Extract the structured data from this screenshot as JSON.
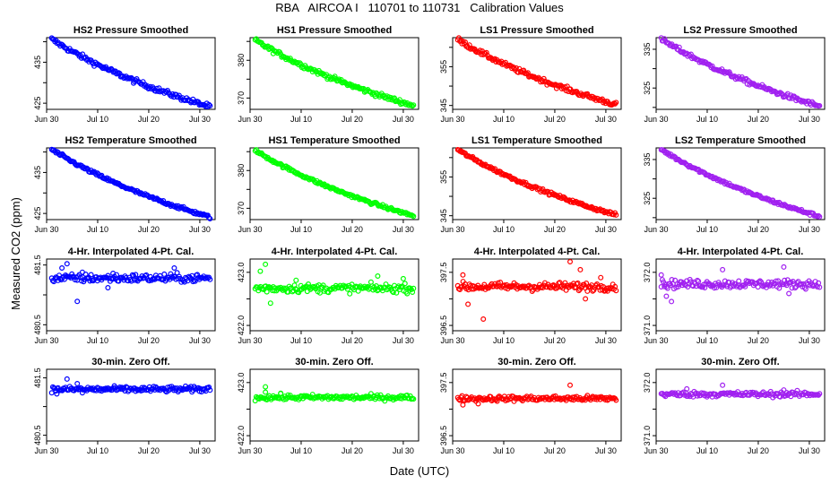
{
  "title": "RBA   AIRCOA I   110701 to 110731   Calibration Values",
  "ylabel": "Measured CO2 (ppm)",
  "xlabel": "Date (UTC)",
  "x_ticks": [
    "Jun 30",
    "Jul 10",
    "Jul 20",
    "Jul 30"
  ],
  "columns": [
    {
      "name": "HS2",
      "color": "#0000ff"
    },
    {
      "name": "HS1",
      "color": "#00ff00"
    },
    {
      "name": "LS1",
      "color": "#ff0000"
    },
    {
      "name": "LS2",
      "color": "#a020f0"
    }
  ],
  "chart_data": [
    {
      "type": "scatter",
      "title": "HS2 Pressure Smoothed",
      "color": "#0000ff",
      "xlim": [
        "2011-06-30",
        "2011-08-02"
      ],
      "ylim": [
        423.5,
        441.0
      ],
      "y_ticks": [
        "425",
        "435"
      ],
      "shape": "drift",
      "x_start": "2011-07-01",
      "x_end": "2011-08-01",
      "y_start": 440.6,
      "y_end": 424.1,
      "noise": 0.3,
      "outliers": []
    },
    {
      "type": "scatter",
      "title": "HS1 Pressure Smoothed",
      "color": "#00ff00",
      "xlim": [
        "2011-06-30",
        "2011-08-02"
      ],
      "ylim": [
        367.0,
        386.0
      ],
      "y_ticks": [
        "370",
        "380"
      ],
      "shape": "drift",
      "x_start": "2011-07-01",
      "x_end": "2011-08-01",
      "y_start": 385.3,
      "y_end": 368.0,
      "noise": 0.3,
      "outliers": []
    },
    {
      "type": "scatter",
      "title": "LS1 Pressure Smoothed",
      "color": "#ff0000",
      "xlim": [
        "2011-06-30",
        "2011-08-02"
      ],
      "ylim": [
        344.0,
        362.5
      ],
      "y_ticks": [
        "345",
        "355"
      ],
      "shape": "drift",
      "x_start": "2011-07-01",
      "x_end": "2011-08-01",
      "y_start": 362.0,
      "y_end": 345.2,
      "noise": 0.3,
      "outliers": []
    },
    {
      "type": "scatter",
      "title": "LS2 Pressure Smoothed",
      "color": "#a020f0",
      "xlim": [
        "2011-06-30",
        "2011-08-02"
      ],
      "ylim": [
        319.5,
        338.0
      ],
      "y_ticks": [
        "325",
        "335"
      ],
      "shape": "drift",
      "x_start": "2011-07-01",
      "x_end": "2011-08-01",
      "y_start": 337.6,
      "y_end": 320.3,
      "noise": 0.3,
      "outliers": []
    },
    {
      "type": "scatter",
      "title": "HS2 Temperature Smoothed",
      "color": "#0000ff",
      "xlim": [
        "2011-06-30",
        "2011-08-02"
      ],
      "ylim": [
        423.5,
        441.0
      ],
      "y_ticks": [
        "425",
        "435"
      ],
      "shape": "drift",
      "x_start": "2011-07-01",
      "x_end": "2011-08-01",
      "y_start": 440.6,
      "y_end": 424.1,
      "noise": 0.2,
      "outliers": []
    },
    {
      "type": "scatter",
      "title": "HS1 Temperature Smoothed",
      "color": "#00ff00",
      "xlim": [
        "2011-06-30",
        "2011-08-02"
      ],
      "ylim": [
        367.0,
        386.0
      ],
      "y_ticks": [
        "370",
        "380"
      ],
      "shape": "drift",
      "x_start": "2011-07-01",
      "x_end": "2011-08-01",
      "y_start": 385.3,
      "y_end": 368.0,
      "noise": 0.2,
      "outliers": []
    },
    {
      "type": "scatter",
      "title": "LS1 Temperature Smoothed",
      "color": "#ff0000",
      "xlim": [
        "2011-06-30",
        "2011-08-02"
      ],
      "ylim": [
        344.0,
        362.5
      ],
      "y_ticks": [
        "345",
        "355"
      ],
      "shape": "drift",
      "x_start": "2011-07-01",
      "x_end": "2011-08-01",
      "y_start": 362.0,
      "y_end": 345.2,
      "noise": 0.2,
      "outliers": []
    },
    {
      "type": "scatter",
      "title": "LS2 Temperature Smoothed",
      "color": "#a020f0",
      "xlim": [
        "2011-06-30",
        "2011-08-02"
      ],
      "ylim": [
        319.5,
        338.0
      ],
      "y_ticks": [
        "325",
        "335"
      ],
      "shape": "drift",
      "x_start": "2011-07-01",
      "x_end": "2011-08-01",
      "y_start": 337.6,
      "y_end": 320.3,
      "noise": 0.2,
      "outliers": []
    },
    {
      "type": "scatter",
      "title": "4-Hr. Interpolated 4-Pt. Cal.",
      "color": "#0000ff",
      "xlim": [
        "2011-06-30",
        "2011-08-02"
      ],
      "ylim": [
        480.4,
        481.6
      ],
      "y_ticks": [
        "480.5",
        "481.5"
      ],
      "shape": "flat",
      "x_start": "2011-07-01",
      "x_end": "2011-08-01",
      "y_start": 481.28,
      "y_end": 481.28,
      "noise": 0.035,
      "outliers": [
        [
          "2011-07-04",
          481.52
        ],
        [
          "2011-07-03",
          481.45
        ],
        [
          "2011-07-06",
          480.89
        ],
        [
          "2011-07-07",
          481.38
        ],
        [
          "2011-07-12",
          481.12
        ],
        [
          "2011-07-25",
          481.45
        ],
        [
          "2011-07-13",
          481.36
        ]
      ]
    },
    {
      "type": "scatter",
      "title": "4-Hr. Interpolated 4-Pt. Cal.",
      "color": "#00ff00",
      "xlim": [
        "2011-06-30",
        "2011-08-02"
      ],
      "ylim": [
        421.9,
        423.25
      ],
      "y_ticks": [
        "422.0",
        "423.0"
      ],
      "shape": "flat",
      "x_start": "2011-07-01",
      "x_end": "2011-08-01",
      "y_start": 422.7,
      "y_end": 422.7,
      "noise": 0.04,
      "outliers": [
        [
          "2011-07-03",
          423.15
        ],
        [
          "2011-07-04",
          422.42
        ],
        [
          "2011-07-02",
          423.02
        ],
        [
          "2011-07-09",
          422.85
        ],
        [
          "2011-07-25",
          422.93
        ],
        [
          "2011-07-30",
          422.88
        ]
      ]
    },
    {
      "type": "scatter",
      "title": "4-Hr. Interpolated 4-Pt. Cal.",
      "color": "#ff0000",
      "xlim": [
        "2011-06-30",
        "2011-08-02"
      ],
      "ylim": [
        396.4,
        397.75
      ],
      "y_ticks": [
        "396.5",
        "397.5"
      ],
      "shape": "flat",
      "x_start": "2011-07-01",
      "x_end": "2011-08-01",
      "y_start": 397.23,
      "y_end": 397.23,
      "noise": 0.04,
      "outliers": [
        [
          "2011-07-23",
          397.7
        ],
        [
          "2011-07-25",
          397.55
        ],
        [
          "2011-07-06",
          396.62
        ],
        [
          "2011-07-03",
          396.9
        ],
        [
          "2011-07-02",
          397.45
        ],
        [
          "2011-07-26",
          397.0
        ],
        [
          "2011-07-29",
          397.4
        ]
      ]
    },
    {
      "type": "scatter",
      "title": "4-Hr. Interpolated 4-Pt. Cal.",
      "color": "#a020f0",
      "xlim": [
        "2011-06-30",
        "2011-08-02"
      ],
      "ylim": [
        370.9,
        372.25
      ],
      "y_ticks": [
        "371.0",
        "372.0"
      ],
      "shape": "flat",
      "x_start": "2011-07-01",
      "x_end": "2011-08-01",
      "y_start": 371.78,
      "y_end": 371.78,
      "noise": 0.04,
      "outliers": [
        [
          "2011-07-25",
          372.1
        ],
        [
          "2011-07-13",
          372.05
        ],
        [
          "2011-07-03",
          371.45
        ],
        [
          "2011-07-01",
          371.95
        ],
        [
          "2011-07-26",
          371.6
        ],
        [
          "2011-07-02",
          371.55
        ]
      ]
    },
    {
      "type": "scatter",
      "title": "30-min. Zero Off.",
      "color": "#0000ff",
      "xlim": [
        "2011-06-30",
        "2011-08-02"
      ],
      "ylim": [
        480.4,
        481.65
      ],
      "y_ticks": [
        "480.5",
        "481.5"
      ],
      "shape": "flat",
      "x_start": "2011-07-01",
      "x_end": "2011-08-01",
      "y_start": 481.3,
      "y_end": 481.3,
      "noise": 0.025,
      "outliers": [
        [
          "2011-07-04",
          481.48
        ],
        [
          "2011-07-06",
          481.4
        ],
        [
          "2011-07-02",
          481.22
        ],
        [
          "2011-07-07",
          481.24
        ]
      ]
    },
    {
      "type": "scatter",
      "title": "30-min. Zero Off.",
      "color": "#00ff00",
      "xlim": [
        "2011-06-30",
        "2011-08-02"
      ],
      "ylim": [
        421.9,
        423.25
      ],
      "y_ticks": [
        "422.0",
        "423.0"
      ],
      "shape": "flat",
      "x_start": "2011-07-01",
      "x_end": "2011-08-01",
      "y_start": 422.72,
      "y_end": 422.72,
      "noise": 0.025,
      "outliers": [
        [
          "2011-07-03",
          422.92
        ],
        [
          "2011-07-03",
          422.82
        ],
        [
          "2011-07-06",
          422.8
        ]
      ]
    },
    {
      "type": "scatter",
      "title": "30-min. Zero Off.",
      "color": "#ff0000",
      "xlim": [
        "2011-06-30",
        "2011-08-02"
      ],
      "ylim": [
        396.4,
        397.75
      ],
      "y_ticks": [
        "396.5",
        "397.5"
      ],
      "shape": "flat",
      "x_start": "2011-07-01",
      "x_end": "2011-08-01",
      "y_start": 397.2,
      "y_end": 397.2,
      "noise": 0.025,
      "outliers": [
        [
          "2011-07-23",
          397.45
        ],
        [
          "2011-07-02",
          397.08
        ],
        [
          "2011-07-05",
          397.1
        ]
      ]
    },
    {
      "type": "scatter",
      "title": "30-min. Zero Off.",
      "color": "#a020f0",
      "xlim": [
        "2011-06-30",
        "2011-08-02"
      ],
      "ylim": [
        370.9,
        372.25
      ],
      "y_ticks": [
        "371.0",
        "372.0"
      ],
      "shape": "flat",
      "x_start": "2011-07-01",
      "x_end": "2011-08-01",
      "y_start": 371.78,
      "y_end": 371.78,
      "noise": 0.025,
      "outliers": [
        [
          "2011-07-13",
          371.95
        ],
        [
          "2011-07-06",
          371.88
        ],
        [
          "2011-07-25",
          371.86
        ]
      ]
    }
  ]
}
